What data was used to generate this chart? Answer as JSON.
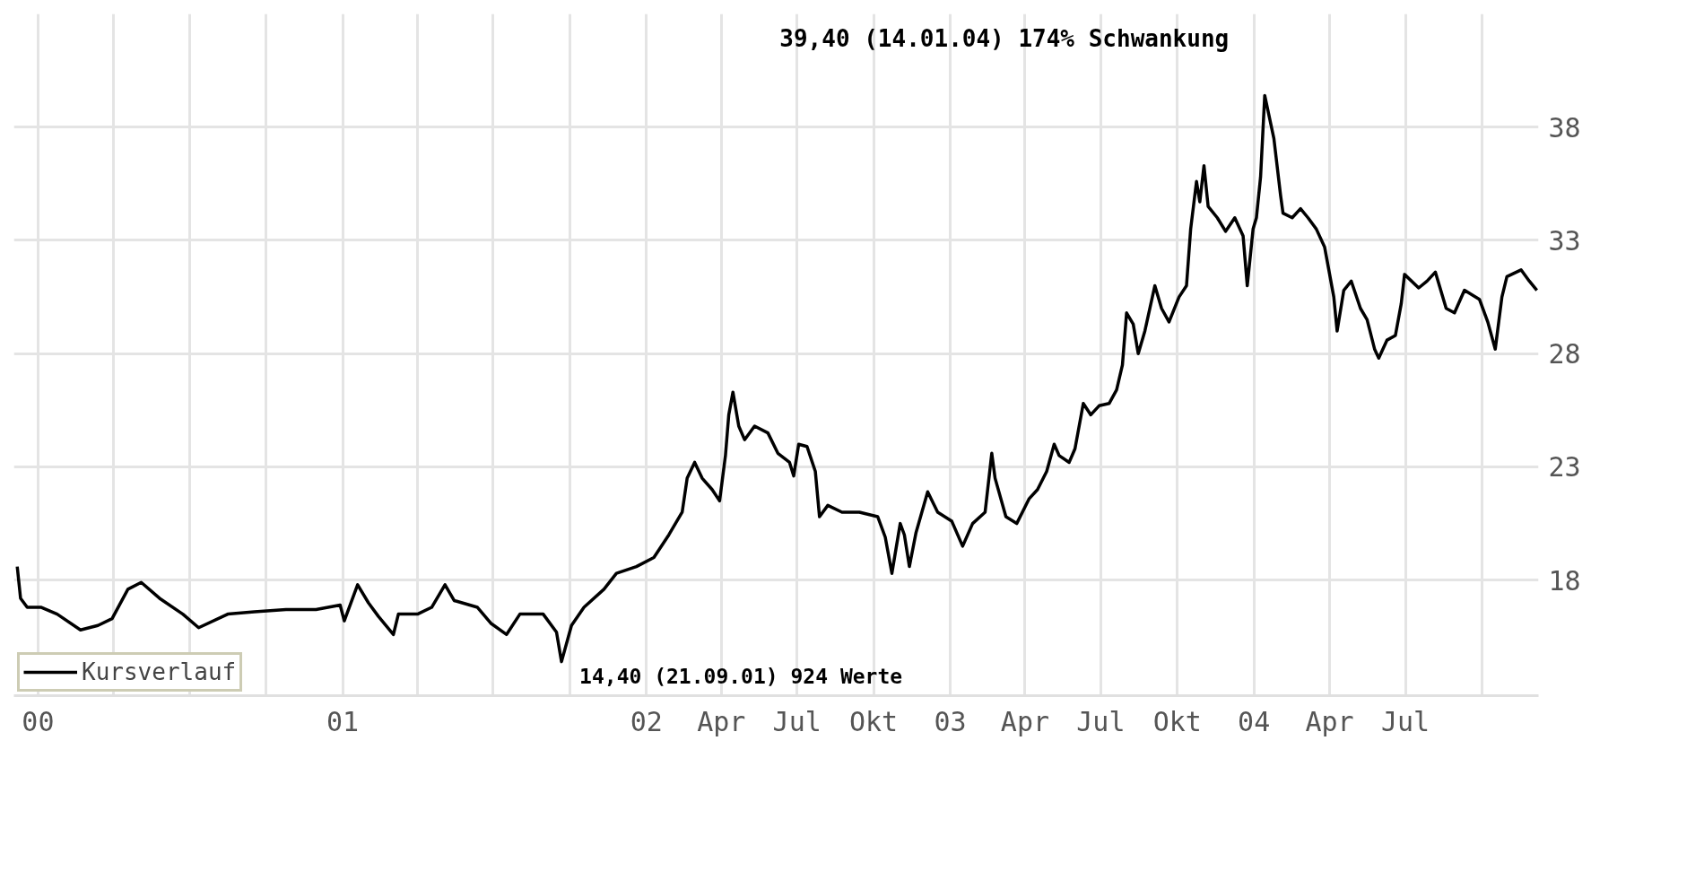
{
  "chart_data": {
    "type": "line",
    "x": [
      "1999-12-07",
      "1999-12-11",
      "1999-12-19",
      "2000-01-05",
      "2000-01-24",
      "2000-02-21",
      "2000-03-13",
      "2000-03-30",
      "2000-04-18",
      "2000-05-04",
      "2000-05-26",
      "2000-06-23",
      "2000-07-12",
      "2000-08-16",
      "2000-09-17",
      "2000-10-25",
      "2000-11-30",
      "2000-12-29",
      "2001-01-03",
      "2001-01-19",
      "2001-02-01",
      "2001-02-13",
      "2001-03-03",
      "2001-03-09",
      "2001-04-01",
      "2001-04-18",
      "2001-05-04",
      "2001-05-15",
      "2001-06-12",
      "2001-06-28",
      "2001-07-17",
      "2001-08-02",
      "2001-08-30",
      "2001-09-15",
      "2001-09-21",
      "2001-10-03",
      "2001-10-18",
      "2001-11-11",
      "2001-11-26",
      "2001-12-20",
      "2002-01-10",
      "2002-01-28",
      "2002-02-13",
      "2002-02-19",
      "2002-02-28",
      "2002-03-09",
      "2002-03-21",
      "2002-03-30",
      "2002-04-06",
      "2002-04-10",
      "2002-04-15",
      "2002-04-22",
      "2002-04-29",
      "2002-05-11",
      "2002-05-27",
      "2002-06-08",
      "2002-06-22",
      "2002-06-27",
      "2002-07-03",
      "2002-07-13",
      "2002-07-23",
      "2002-07-28",
      "2002-08-07",
      "2002-08-24",
      "2002-09-14",
      "2002-10-06",
      "2002-10-15",
      "2002-10-23",
      "2002-11-02",
      "2002-11-07",
      "2002-11-13",
      "2002-11-21",
      "2002-12-05",
      "2002-12-17",
      "2003-01-03",
      "2003-01-16",
      "2003-01-28",
      "2003-02-12",
      "2003-02-20",
      "2003-02-24",
      "2003-03-09",
      "2003-03-22",
      "2003-04-06",
      "2003-04-16",
      "2003-04-27",
      "2003-05-06",
      "2003-05-12",
      "2003-05-24",
      "2003-05-31",
      "2003-06-10",
      "2003-06-19",
      "2003-06-29",
      "2003-07-11",
      "2003-07-20",
      "2003-07-27",
      "2003-08-01",
      "2003-08-09",
      "2003-08-15",
      "2003-08-23",
      "2003-09-04",
      "2003-09-12",
      "2003-09-21",
      "2003-10-03",
      "2003-10-12",
      "2003-10-17",
      "2003-10-24",
      "2003-10-28",
      "2003-11-02",
      "2003-11-07",
      "2003-11-18",
      "2003-11-28",
      "2003-12-09",
      "2003-12-19",
      "2003-12-24",
      "2003-12-31",
      "2004-01-04",
      "2004-01-09",
      "2004-01-14",
      "2004-01-25",
      "2004-02-02",
      "2004-02-05",
      "2004-02-16",
      "2004-02-26",
      "2004-03-06",
      "2004-03-16",
      "2004-03-26",
      "2004-04-06",
      "2004-04-10",
      "2004-04-18",
      "2004-04-27",
      "2004-05-08",
      "2004-05-16",
      "2004-05-25",
      "2004-05-30",
      "2004-06-09",
      "2004-06-19",
      "2004-06-26",
      "2004-06-30",
      "2004-07-17",
      "2004-07-27",
      "2004-08-06",
      "2004-08-19",
      "2004-08-29",
      "2004-09-10",
      "2004-09-28",
      "2004-10-08",
      "2004-10-17",
      "2004-10-25",
      "2004-10-31",
      "2004-11-17",
      "2004-11-27",
      "2004-12-06"
    ],
    "series": [
      {
        "name": "Kursverlauf",
        "color": "#000000",
        "values": [
          18.6,
          17.2,
          16.8,
          16.8,
          16.5,
          15.8,
          16.0,
          16.3,
          17.6,
          17.9,
          17.2,
          16.5,
          15.9,
          16.5,
          16.6,
          16.7,
          16.7,
          16.9,
          16.2,
          17.8,
          17.0,
          16.4,
          15.6,
          16.5,
          16.5,
          16.8,
          17.8,
          17.1,
          16.8,
          16.1,
          15.6,
          16.5,
          16.5,
          15.7,
          14.4,
          16.0,
          16.8,
          17.6,
          18.3,
          18.6,
          19.0,
          20.0,
          21.0,
          22.5,
          23.2,
          22.5,
          22.0,
          21.5,
          23.5,
          25.3,
          26.3,
          24.8,
          24.2,
          24.8,
          24.5,
          23.6,
          23.2,
          22.6,
          24.0,
          23.9,
          22.8,
          20.8,
          21.3,
          21.0,
          21.0,
          20.8,
          19.9,
          18.3,
          20.5,
          20.0,
          18.6,
          20.1,
          21.9,
          21.0,
          20.6,
          19.5,
          20.5,
          21.0,
          23.6,
          22.5,
          20.8,
          20.5,
          21.6,
          22.0,
          22.8,
          24.0,
          23.5,
          23.2,
          23.8,
          25.8,
          25.3,
          25.7,
          25.8,
          26.4,
          27.5,
          29.8,
          29.3,
          28.0,
          29.0,
          31.0,
          30.0,
          29.4,
          30.5,
          31.0,
          33.5,
          35.6,
          34.7,
          36.3,
          34.5,
          34.0,
          33.4,
          34.0,
          33.2,
          31.0,
          33.5,
          34.0,
          35.8,
          39.4,
          37.5,
          35.0,
          34.2,
          34.0,
          34.4,
          34.0,
          33.5,
          32.7,
          30.5,
          29.0,
          30.8,
          31.2,
          30.0,
          29.5,
          28.2,
          27.8,
          28.6,
          28.8,
          30.2,
          31.5,
          30.9,
          31.2,
          31.6,
          30.0,
          29.8,
          30.8,
          30.4,
          29.4,
          28.2,
          30.5,
          31.4,
          31.7,
          31.2,
          30.8
        ]
      }
    ],
    "xlim": [
      "1999-12-03",
      "2004-12-08"
    ],
    "xticks": [
      {
        "value": "2000-01",
        "label": "00"
      },
      {
        "value": "2000-04",
        "label": null
      },
      {
        "value": "2000-07",
        "label": null
      },
      {
        "value": "2000-10",
        "label": null
      },
      {
        "value": "2001-01",
        "label": "01"
      },
      {
        "value": "2001-04",
        "label": null
      },
      {
        "value": "2001-07",
        "label": null
      },
      {
        "value": "2001-10",
        "label": null
      },
      {
        "value": "2002-01",
        "label": "02"
      },
      {
        "value": "2002-04",
        "label": "Apr"
      },
      {
        "value": "2002-07",
        "label": "Jul"
      },
      {
        "value": "2002-10",
        "label": "Okt"
      },
      {
        "value": "2003-01",
        "label": "03"
      },
      {
        "value": "2003-04",
        "label": "Apr"
      },
      {
        "value": "2003-07",
        "label": "Jul"
      },
      {
        "value": "2003-10",
        "label": "Okt"
      },
      {
        "value": "2004-01",
        "label": "04"
      },
      {
        "value": "2004-04",
        "label": "Apr"
      },
      {
        "value": "2004-07",
        "label": "Jul"
      },
      {
        "value": "2004-10",
        "label": null
      }
    ],
    "ylim": [
      12.9,
      43.0
    ],
    "yticks": [
      18,
      23,
      28,
      33,
      38
    ],
    "grid": true,
    "legend": "bottom",
    "line_style": "solid",
    "annotations": [
      {
        "text": "39,40 (14.01.04) 174% Schwankung",
        "x": "2004-01-14",
        "y": 39.4
      },
      {
        "text": "14,40 (21.09.01) 924 Werte",
        "x": "2001-09-21",
        "y": 14.4
      }
    ]
  }
}
